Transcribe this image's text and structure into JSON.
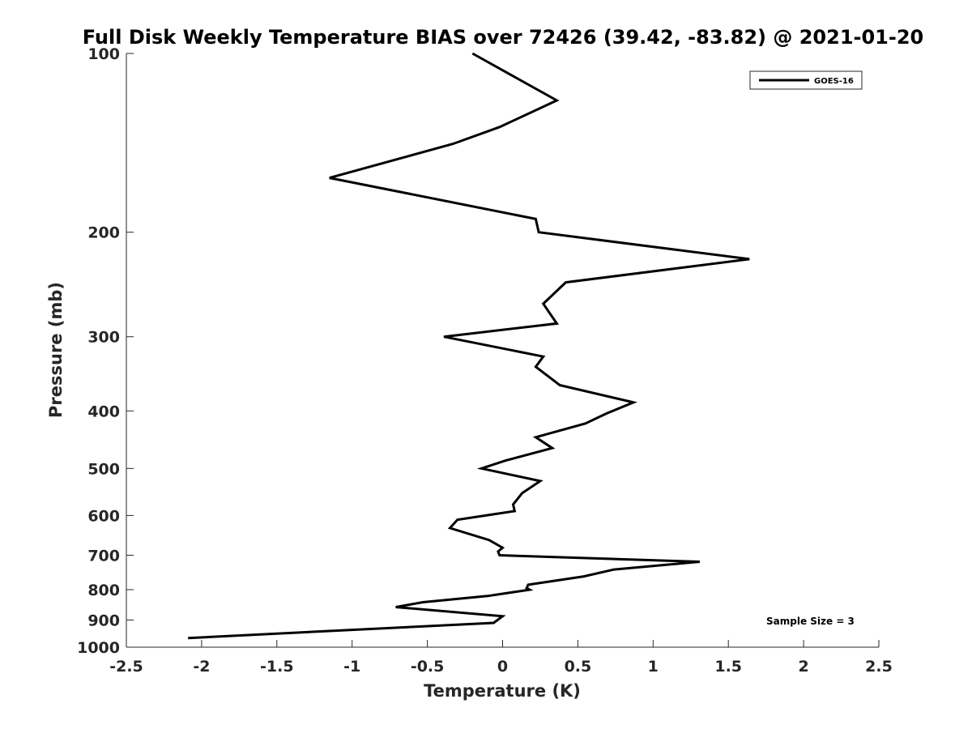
{
  "chart_data": {
    "type": "line",
    "title": "Full Disk Weekly Temperature BIAS over 72426 (39.42, -83.82) @ 2021-01-20",
    "xlabel": "Temperature (K)",
    "ylabel": "Pressure (mb)",
    "xlim": [
      -2.5,
      2.5
    ],
    "ylim": [
      100,
      1000
    ],
    "yscale": "log",
    "yreversed": true,
    "x_ticks": [
      "-2.5",
      "-2",
      "-1.5",
      "-1",
      "-0.5",
      "0",
      "0.5",
      "1",
      "1.5",
      "2",
      "2.5"
    ],
    "y_ticks": [
      "100",
      "200",
      "300",
      "400",
      "500",
      "600",
      "700",
      "800",
      "900",
      "1000"
    ],
    "grid": false,
    "legend_position": "top-right",
    "annotation": "Sample Size = 3",
    "series": [
      {
        "name": "GOES-16",
        "color": "#000000",
        "points": [
          [
            -0.2,
            100
          ],
          [
            0.36,
            120
          ],
          [
            -0.02,
            133
          ],
          [
            -0.33,
            142
          ],
          [
            -1.15,
            162
          ],
          [
            0.22,
            190
          ],
          [
            0.24,
            200
          ],
          [
            1.64,
            222
          ],
          [
            0.42,
            243
          ],
          [
            0.27,
            264
          ],
          [
            0.36,
            285
          ],
          [
            -0.39,
            300
          ],
          [
            0.27,
            324
          ],
          [
            0.22,
            337
          ],
          [
            0.38,
            362
          ],
          [
            0.87,
            387
          ],
          [
            0.69,
            404
          ],
          [
            0.55,
            420
          ],
          [
            0.22,
            443
          ],
          [
            0.33,
            462
          ],
          [
            0.02,
            485
          ],
          [
            -0.14,
            500
          ],
          [
            0.25,
            525
          ],
          [
            0.13,
            550
          ],
          [
            0.07,
            575
          ],
          [
            0.08,
            590
          ],
          [
            -0.3,
            610
          ],
          [
            -0.35,
            630
          ],
          [
            -0.09,
            660
          ],
          [
            0.0,
            680
          ],
          [
            -0.03,
            690
          ],
          [
            -0.02,
            700
          ],
          [
            1.31,
            718
          ],
          [
            0.74,
            740
          ],
          [
            0.54,
            760
          ],
          [
            0.17,
            785
          ],
          [
            0.16,
            795
          ],
          [
            0.18,
            800
          ],
          [
            -0.1,
            820
          ],
          [
            -0.53,
            840
          ],
          [
            -0.71,
            856
          ],
          [
            0.0,
            887
          ],
          [
            -0.06,
            910
          ],
          [
            -0.63,
            925
          ],
          [
            -2.09,
            965
          ]
        ]
      }
    ]
  }
}
